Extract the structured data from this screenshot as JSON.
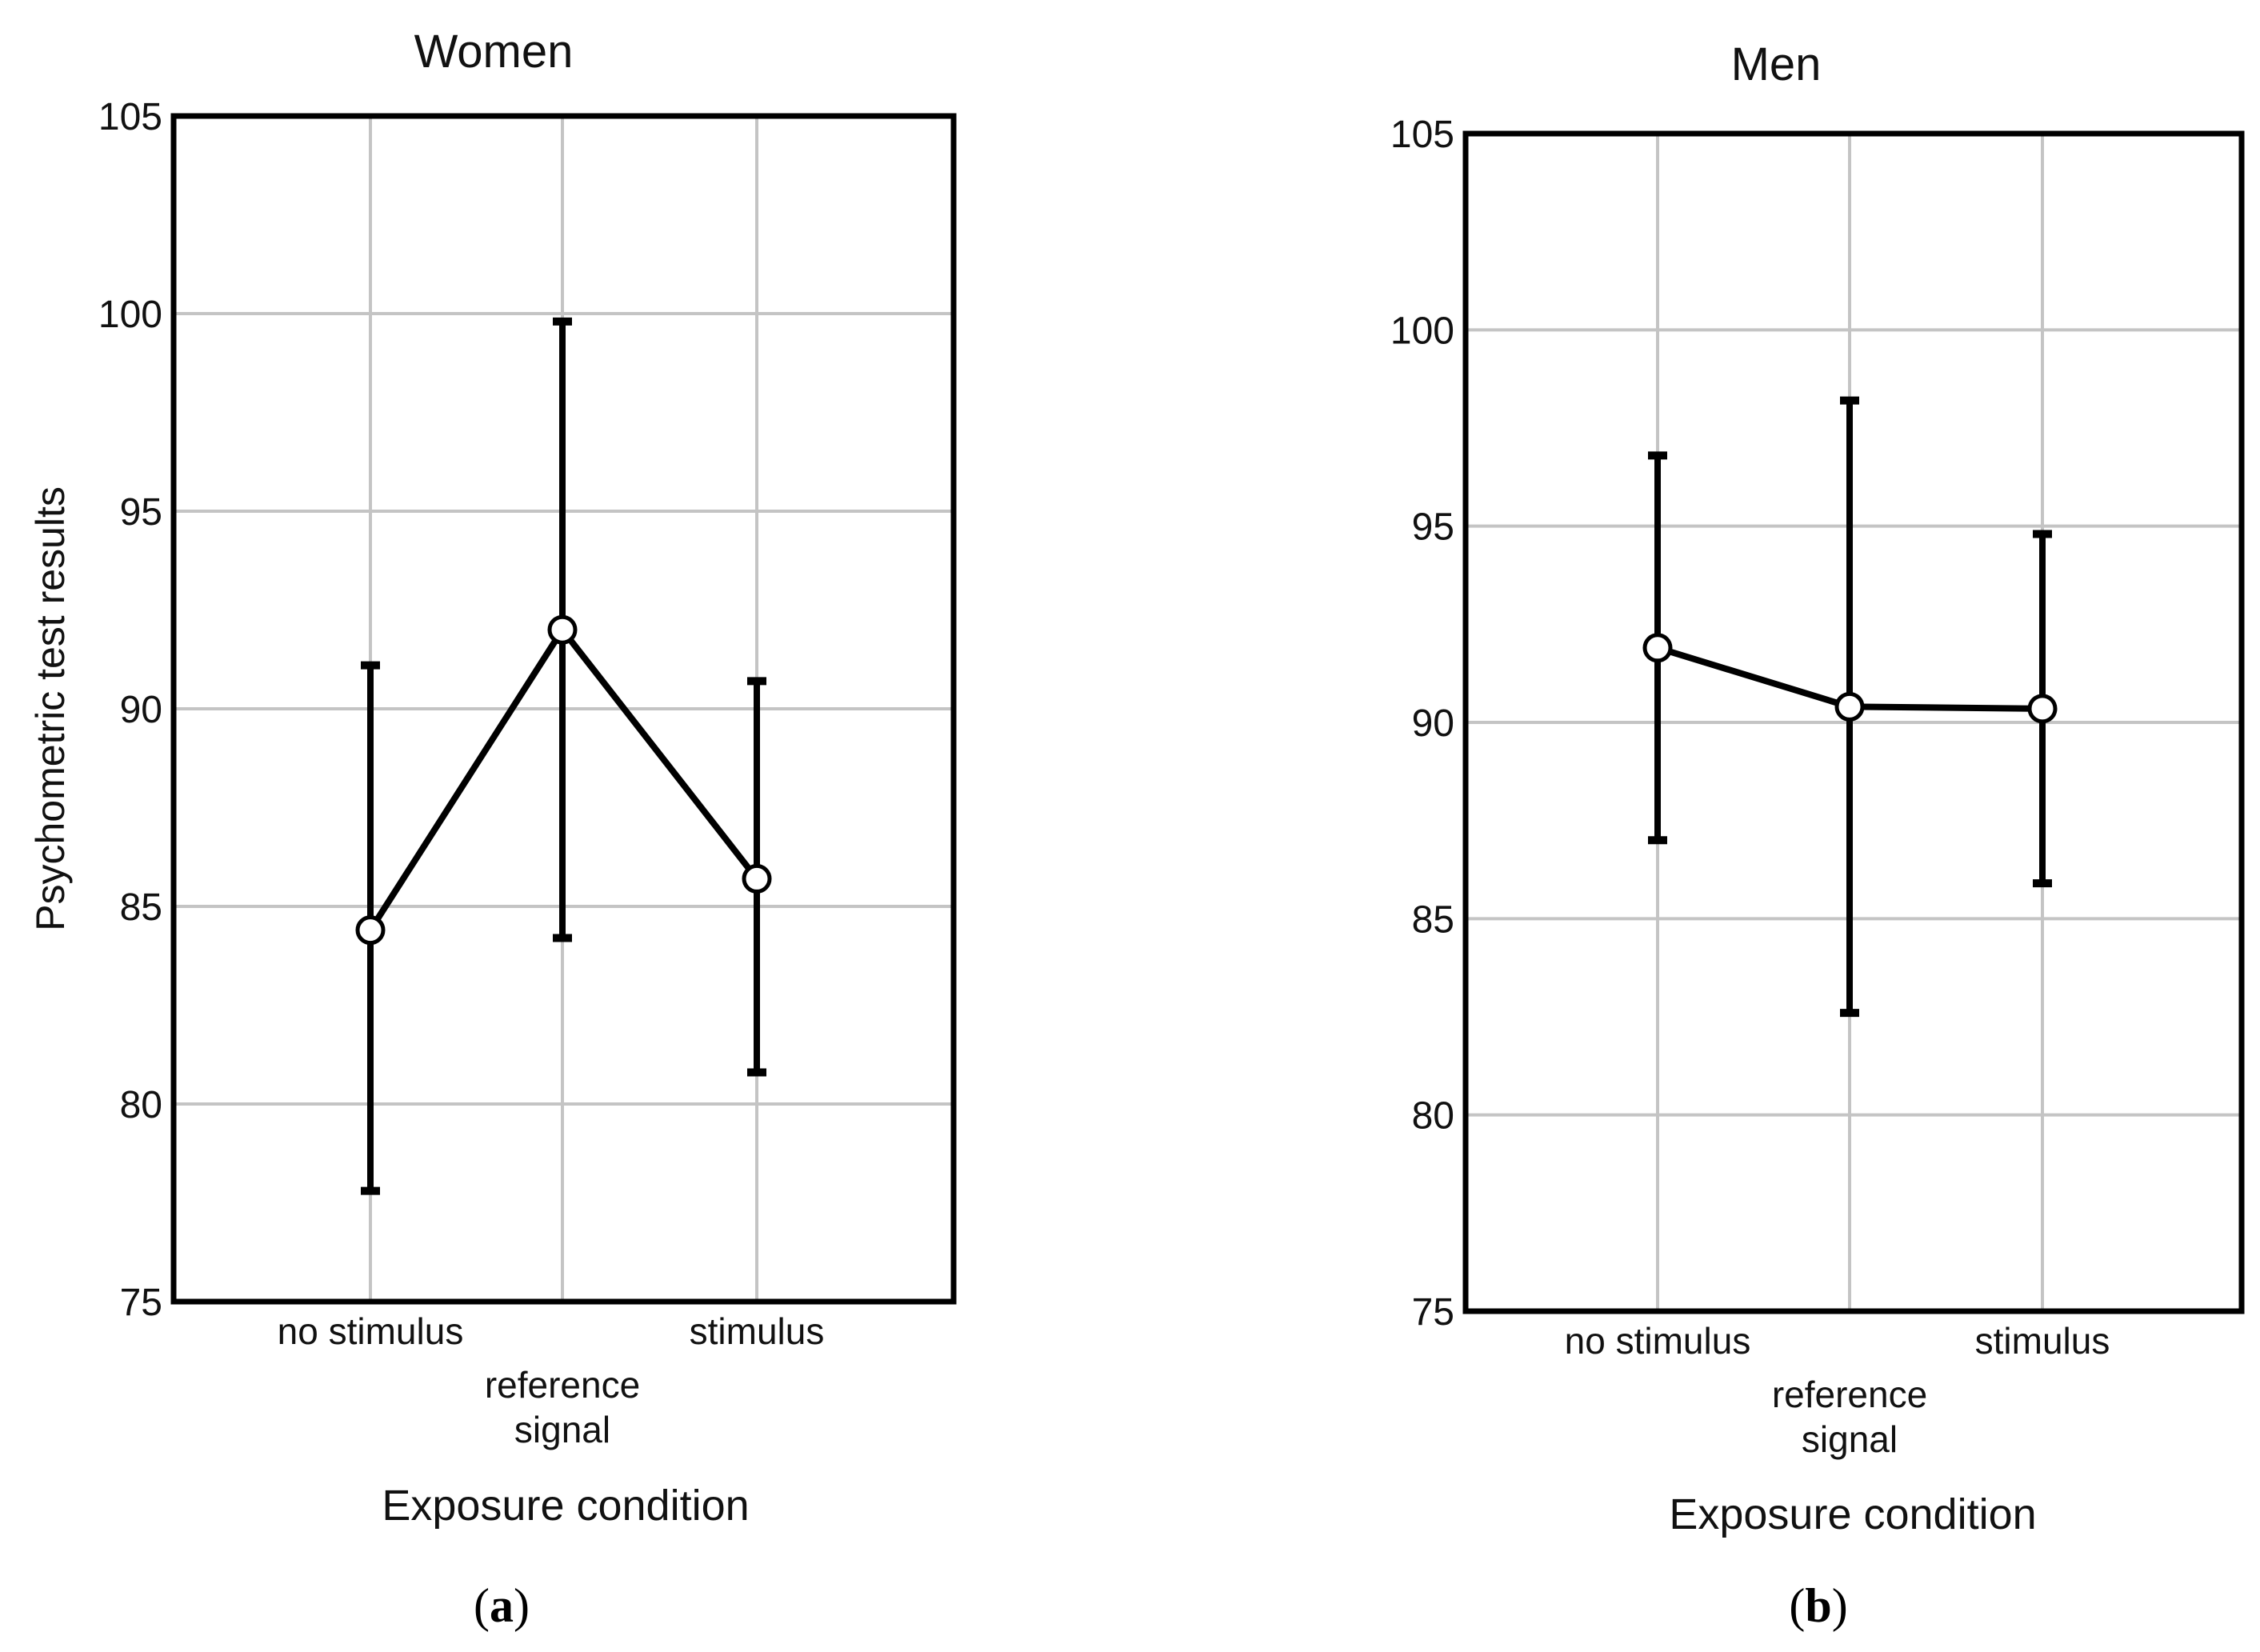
{
  "chart_data": [
    {
      "type": "line",
      "panel_label": "a",
      "title": "Women",
      "xlabel": "Exposure condition",
      "ylabel": "Psychometric test results",
      "categories": [
        [
          "no stimulus"
        ],
        [
          "reference",
          "signal"
        ],
        [
          "stimulus"
        ]
      ],
      "ylim": [
        75,
        105
      ],
      "yticks": [
        "75",
        "80",
        "85",
        "90",
        "95",
        "100",
        "105"
      ],
      "grid": true,
      "series": [
        {
          "name": "Women",
          "values": [
            84.4,
            92.0,
            85.7
          ],
          "error_low": [
            77.8,
            84.2,
            80.8
          ],
          "error_high": [
            91.1,
            99.8,
            90.7
          ]
        }
      ]
    },
    {
      "type": "line",
      "panel_label": "b",
      "title": "Men",
      "xlabel": "Exposure condition",
      "ylabel": "",
      "categories": [
        [
          "no stimulus"
        ],
        [
          "reference",
          "signal"
        ],
        [
          "stimulus"
        ]
      ],
      "ylim": [
        75,
        105
      ],
      "yticks": [
        "75",
        "80",
        "85",
        "90",
        "95",
        "100",
        "105"
      ],
      "grid": true,
      "series": [
        {
          "name": "Men",
          "values": [
            91.9,
            90.4,
            90.35
          ],
          "error_low": [
            87.0,
            82.6,
            85.9
          ],
          "error_high": [
            96.8,
            98.2,
            94.8
          ]
        }
      ]
    }
  ]
}
